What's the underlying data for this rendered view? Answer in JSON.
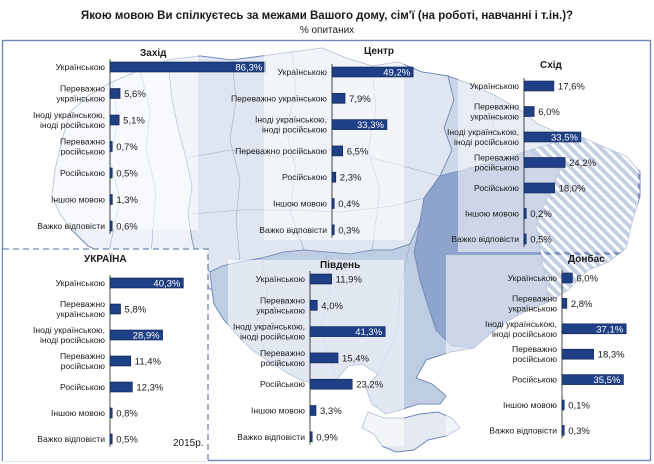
{
  "header": {
    "title": "Якою мовою Ви спілкуєтесь за межами Вашого дому, сім'ї (на роботі, навчанні і т.ін.)?",
    "subtitle": "% опитаних"
  },
  "colors": {
    "bar": "#1f3f86",
    "bar_edge": "#0c214f",
    "map_light": "#eef2f8",
    "map_mid": "#ccd7e8",
    "map_dark": "#a8bad8",
    "map_darkest": "#7d96c4",
    "border": "#6f86b6"
  },
  "year_label": "2015р.",
  "chart_data": [
    {
      "type": "bar",
      "region": "Захід",
      "xlim": [
        0,
        100
      ],
      "categories": [
        "Українською",
        "Переважно українською",
        "Іноді українською, іноді російською",
        "Переважно російською",
        "Російською",
        "Іншою мовою",
        "Важко відповісти"
      ],
      "values": [
        86.3,
        5.6,
        5.1,
        0.7,
        0.5,
        1.3,
        0.6
      ],
      "labels": [
        "86,3%",
        "5,6%",
        "5,1%",
        "0,7%",
        "0,5%",
        "1,3%",
        "0,6%"
      ]
    },
    {
      "type": "bar",
      "region": "Центр",
      "xlim": [
        0,
        100
      ],
      "categories": [
        "Українською",
        "Переважно українською",
        "Іноді українською, іноді російською",
        "Переважно російською",
        "Російською",
        "Іншою мовою",
        "Важко відповісти"
      ],
      "values": [
        49.2,
        7.9,
        33.3,
        6.5,
        2.3,
        0.4,
        0.3
      ],
      "labels": [
        "49,2%",
        "7,9%",
        "33,3%",
        "6,5%",
        "2,3%",
        "0,4%",
        "0,3%"
      ]
    },
    {
      "type": "bar",
      "region": "Схід",
      "xlim": [
        0,
        100
      ],
      "categories": [
        "Українською",
        "Переважно українською",
        "Іноді українською, іноді російською",
        "Переважно російською",
        "Російською",
        "Іншою мовою",
        "Важко відповісти"
      ],
      "values": [
        17.6,
        6.0,
        33.5,
        24.2,
        18.0,
        0.2,
        0.5
      ],
      "labels": [
        "17,6%",
        "6,0%",
        "33,5%",
        "24,2%",
        "18,0%",
        "0,2%",
        "0,5%"
      ]
    },
    {
      "type": "bar",
      "region": "УКРАЇНА",
      "xlim": [
        0,
        100
      ],
      "categories": [
        "Українською",
        "Переважно українською",
        "Іноді українською, іноді російською",
        "Переважно російською",
        "Російською",
        "Іншою мовою",
        "Важко відповісти"
      ],
      "values": [
        40.3,
        5.8,
        28.9,
        11.4,
        12.3,
        0.8,
        0.5
      ],
      "labels": [
        "40,3%",
        "5,8%",
        "28,9%",
        "11,4%",
        "12,3%",
        "0,8%",
        "0,5%"
      ]
    },
    {
      "type": "bar",
      "region": "Південь",
      "xlim": [
        0,
        100
      ],
      "categories": [
        "Українською",
        "Переважно українською",
        "Іноді українською, іноді російською",
        "Переважно російською",
        "Російською",
        "Іншою мовою",
        "Важко відповісти"
      ],
      "values": [
        11.9,
        4.0,
        41.3,
        15.4,
        23.2,
        3.3,
        0.9
      ],
      "labels": [
        "11,9%",
        "4,0%",
        "41,3%",
        "15,4%",
        "23,2%",
        "3,3%",
        "0,9%"
      ]
    },
    {
      "type": "bar",
      "region": "Донбас",
      "xlim": [
        0,
        100
      ],
      "categories": [
        "Українською",
        "Переважно українською",
        "Іноді українською, іноді російською",
        "Переважно російською",
        "Російською",
        "Іншою мовою",
        "Важко відповісти"
      ],
      "values": [
        6.0,
        2.8,
        37.1,
        18.3,
        35.5,
        0.1,
        0.3
      ],
      "labels": [
        "6,0%",
        "2,8%",
        "37,1%",
        "18,3%",
        "35,5%",
        "0,1%",
        "0,3%"
      ]
    }
  ]
}
